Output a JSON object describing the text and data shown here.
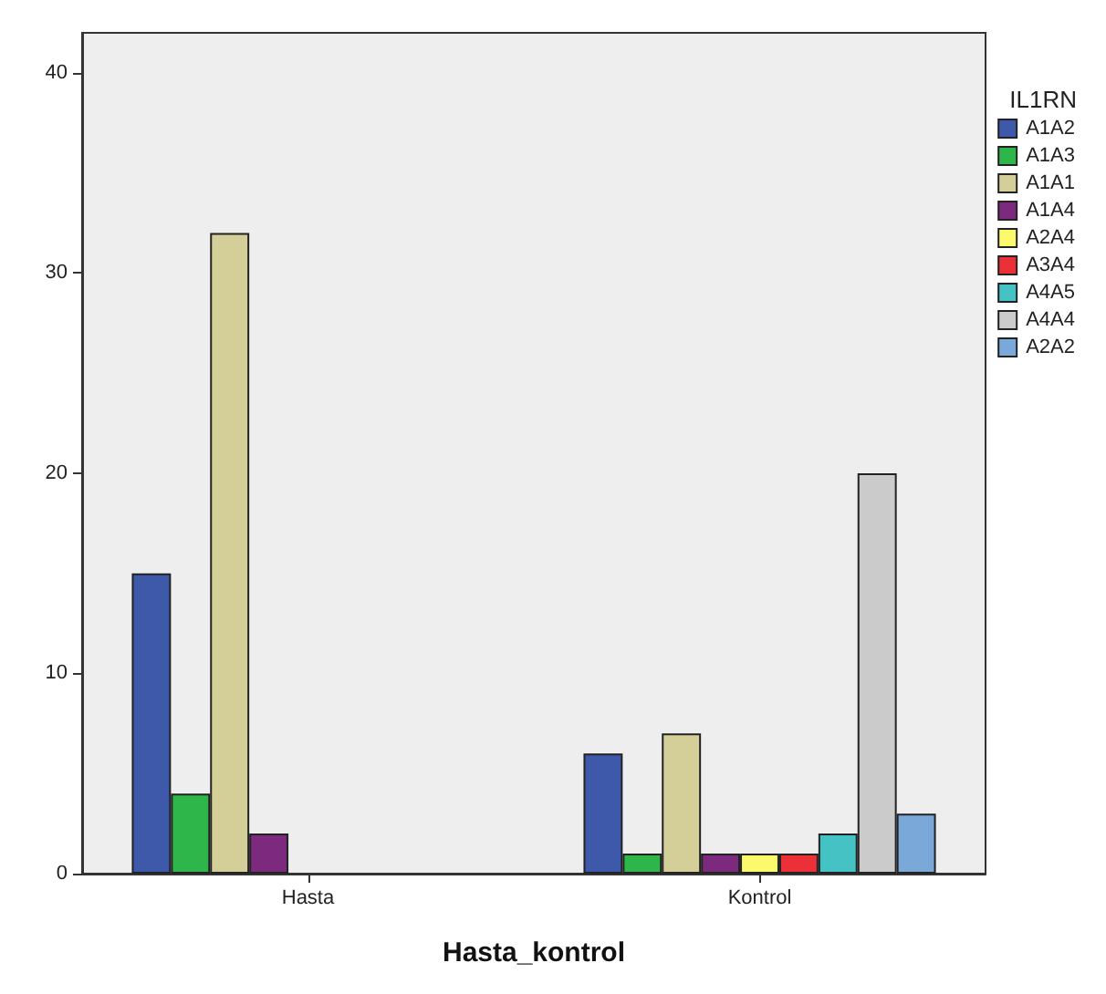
{
  "chart_data": {
    "type": "bar",
    "xlabel": "Hasta_kontrol",
    "legend_title": "IL1RN",
    "categories": [
      "Hasta",
      "Kontrol"
    ],
    "ylim": [
      0,
      42
    ],
    "yticks": [
      0,
      10,
      20,
      30,
      40
    ],
    "grid": false,
    "legend": "right",
    "series": [
      {
        "name": "A1A2",
        "color": "#3e58aa",
        "values": [
          15,
          6
        ]
      },
      {
        "name": "A1A3",
        "color": "#2fb64a",
        "values": [
          4,
          1
        ]
      },
      {
        "name": "A1A1",
        "color": "#d4cf98",
        "values": [
          32,
          7
        ]
      },
      {
        "name": "A1A4",
        "color": "#7b2a7e",
        "values": [
          2,
          1
        ]
      },
      {
        "name": "A2A4",
        "color": "#fbf96c",
        "values": [
          null,
          1
        ]
      },
      {
        "name": "A3A4",
        "color": "#ec3038",
        "values": [
          null,
          1
        ]
      },
      {
        "name": "A4A5",
        "color": "#44c2c4",
        "values": [
          null,
          2
        ]
      },
      {
        "name": "A4A4",
        "color": "#cbcbcb",
        "values": [
          null,
          20
        ]
      },
      {
        "name": "A2A2",
        "color": "#7aa8d8",
        "values": [
          null,
          3
        ]
      }
    ]
  }
}
